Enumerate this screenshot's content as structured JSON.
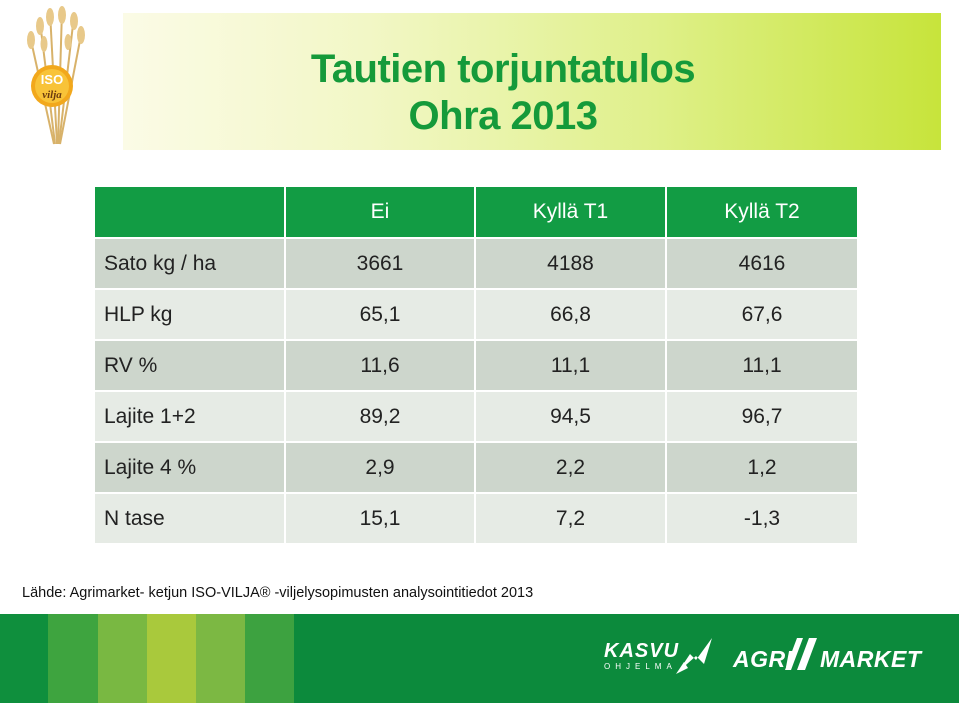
{
  "logo": {
    "text_top": "ISO",
    "text_bottom": "vilja",
    "icon": "wheat-icon"
  },
  "title": {
    "line1": "Tautien torjuntatulos",
    "line2": "Ohra 2013"
  },
  "table": {
    "headers": [
      "",
      "Ei",
      "Kyllä T1",
      "Kyllä T2"
    ],
    "rows": [
      [
        "Sato kg / ha",
        "3661",
        "4188",
        "4616"
      ],
      [
        "HLP kg",
        "65,1",
        "66,8",
        "67,6"
      ],
      [
        "RV %",
        "11,6",
        "11,1",
        "11,1"
      ],
      [
        "Lajite 1+2",
        "89,2",
        "94,5",
        "96,7"
      ],
      [
        "Lajite 4 %",
        "2,9",
        "2,2",
        "1,2"
      ],
      [
        "N tase",
        "15,1",
        "7,2",
        "-1,3"
      ]
    ]
  },
  "source": "Lähde: Agrimarket- ketjun ISO-VILJA® -viljelysopimusten analysointitiedot 2013",
  "footer": {
    "kasvu": "KASVU",
    "kasvu_sub": "OHJELMA",
    "agri": "AGRI",
    "market": "MARKET"
  },
  "colors": {
    "title_green": "#159a3a",
    "header_green": "#129c44",
    "footer_green": "#0c8a3c",
    "row_dark": "#cdd6cc",
    "row_light": "#e6ebe5"
  }
}
